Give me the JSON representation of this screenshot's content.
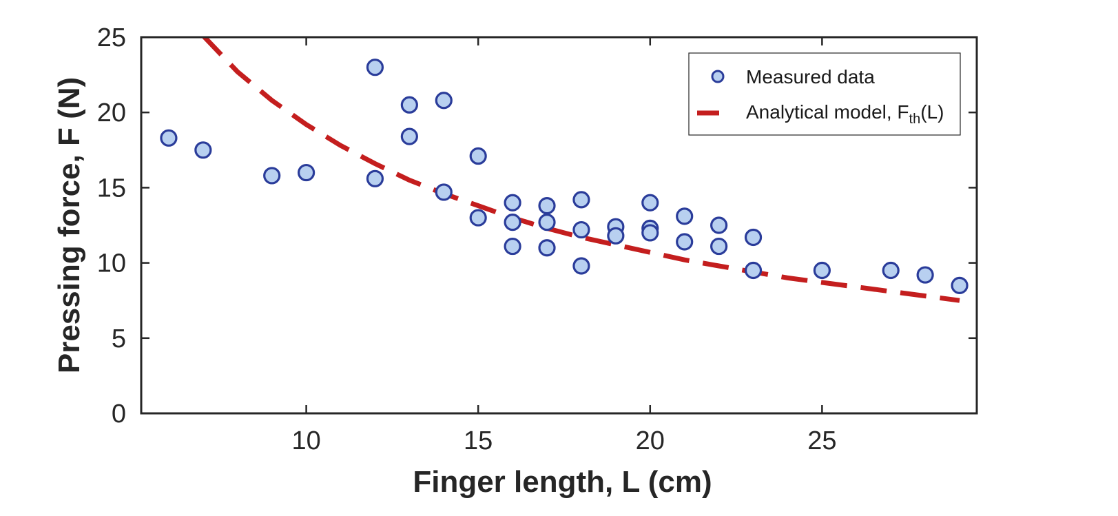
{
  "chart_data": {
    "type": "scatter",
    "title": "",
    "xlabel": "Finger length, L (cm)",
    "ylabel": "Pressing force, F (N)",
    "xlim": [
      5.2,
      29.5
    ],
    "ylim": [
      0,
      25
    ],
    "xticks": [
      10,
      15,
      20,
      25
    ],
    "yticks": [
      0,
      5,
      10,
      15,
      20,
      25
    ],
    "grid": false,
    "legend_position": "top-right",
    "series": [
      {
        "name": "Measured data",
        "kind": "scatter",
        "color": "#2a3c9a",
        "fill": "#b8d0f0",
        "points": [
          [
            6,
            18.3
          ],
          [
            7,
            17.5
          ],
          [
            9,
            15.8
          ],
          [
            10,
            16.0
          ],
          [
            12,
            23.0
          ],
          [
            12,
            15.6
          ],
          [
            13,
            20.5
          ],
          [
            13,
            18.4
          ],
          [
            14,
            20.8
          ],
          [
            14,
            14.7
          ],
          [
            15,
            17.1
          ],
          [
            15,
            13.0
          ],
          [
            16,
            14.0
          ],
          [
            16,
            12.7
          ],
          [
            16,
            11.1
          ],
          [
            17,
            13.8
          ],
          [
            17,
            12.7
          ],
          [
            17,
            11.0
          ],
          [
            18,
            14.2
          ],
          [
            18,
            12.2
          ],
          [
            18,
            9.8
          ],
          [
            19,
            12.4
          ],
          [
            19,
            11.8
          ],
          [
            20,
            14.0
          ],
          [
            20,
            12.3
          ],
          [
            20,
            12.0
          ],
          [
            21,
            13.1
          ],
          [
            21,
            11.4
          ],
          [
            22,
            12.5
          ],
          [
            22,
            11.1
          ],
          [
            23,
            11.7
          ],
          [
            23,
            9.5
          ],
          [
            25,
            9.5
          ],
          [
            27,
            9.5
          ],
          [
            28,
            9.2
          ],
          [
            29,
            8.5
          ]
        ]
      },
      {
        "name_prefix": "Analytical model, F",
        "name_sub": "th",
        "name_suffix": "(L)",
        "kind": "dashed-line",
        "color": "#c41e1e",
        "points": [
          [
            7,
            25.1
          ],
          [
            8,
            22.7
          ],
          [
            9,
            20.8
          ],
          [
            10,
            19.2
          ],
          [
            11,
            17.8
          ],
          [
            12,
            16.6
          ],
          [
            13,
            15.5
          ],
          [
            14,
            14.6
          ],
          [
            15,
            13.8
          ],
          [
            16,
            13.0
          ],
          [
            17,
            12.3
          ],
          [
            18,
            11.7
          ],
          [
            19,
            11.2
          ],
          [
            20,
            10.7
          ],
          [
            21,
            10.2
          ],
          [
            22,
            9.8
          ],
          [
            23,
            9.4
          ],
          [
            24,
            9.0
          ],
          [
            25,
            8.7
          ],
          [
            26,
            8.4
          ],
          [
            27,
            8.1
          ],
          [
            28,
            7.8
          ],
          [
            29,
            7.5
          ]
        ]
      }
    ]
  }
}
